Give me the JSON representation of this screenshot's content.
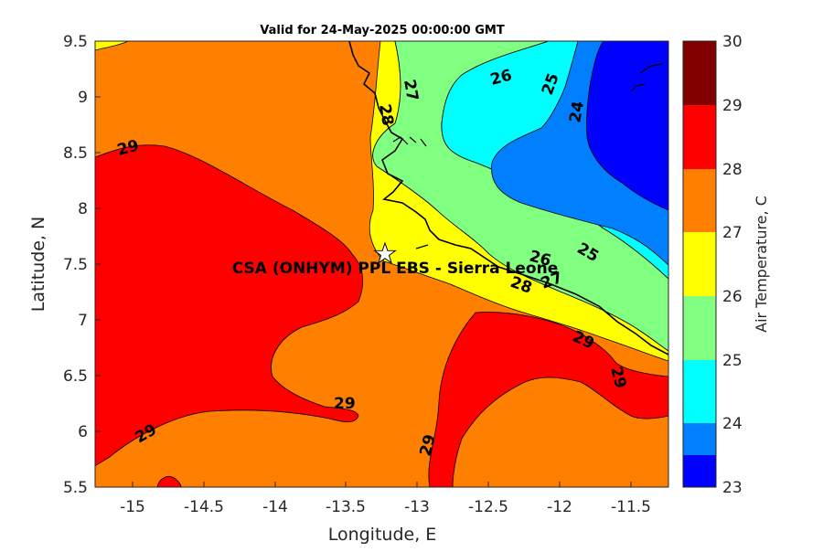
{
  "title": "Valid for 24-May-2025 00:00:00 GMT",
  "xlabel": "Longitude, E",
  "ylabel": "Latitude, N",
  "colorbar_label": "Air Temperature, C",
  "x_ticks": [
    "-15",
    "-14.5",
    "-14",
    "-13.5",
    "-13",
    "-12.5",
    "-12",
    "-11.5"
  ],
  "y_ticks": [
    "9.5",
    "9",
    "8.5",
    "8",
    "7.5",
    "7",
    "6.5",
    "6",
    "5.5"
  ],
  "colorbar_ticks": [
    "30",
    "29",
    "28",
    "27",
    "26",
    "25",
    "24",
    "23"
  ],
  "station_label": "CSA (ONHYM) PPL EBS  - Sierra Leone",
  "contour_labels": [
    "29",
    "29",
    "29",
    "29",
    "29",
    "29",
    "28",
    "28",
    "27",
    "27",
    "26",
    "26",
    "25",
    "25",
    "24"
  ],
  "colors": {
    "t23_24": "#0000ff",
    "t24_25": "#0080ff",
    "t25_26": "#00ffff",
    "t26_27": "#80ff80",
    "t27_28": "#ffff00",
    "t28_29": "#ff8000",
    "t29_30": "#ff0000",
    "t30": "#800000"
  },
  "chart_data": {
    "type": "contour-map",
    "variable": "Air Temperature, C",
    "xlim": [
      -15.25,
      -11.25
    ],
    "ylim": [
      5.5,
      9.5
    ],
    "colorbar_range": [
      23,
      30
    ],
    "station": {
      "lon": -13.25,
      "lat": 7.6,
      "name": "CSA (ONHYM) PPL EBS  - Sierra Leone"
    },
    "contour_levels": [
      24,
      25,
      26,
      27,
      28,
      29
    ]
  }
}
